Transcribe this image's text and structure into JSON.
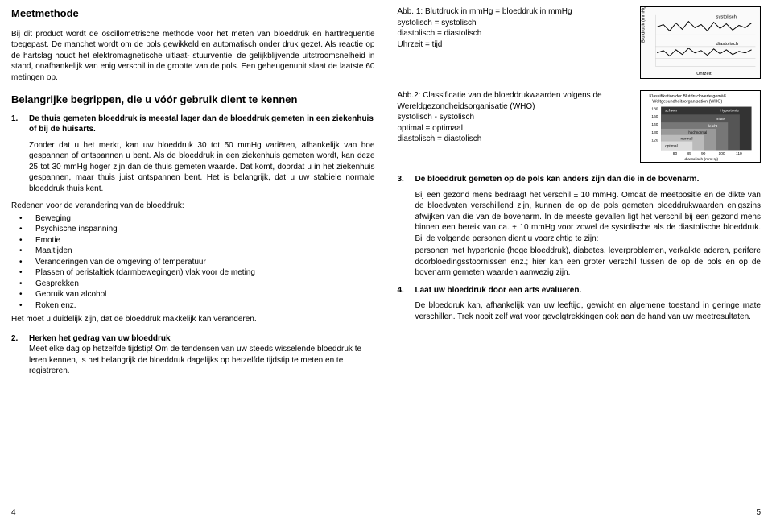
{
  "left": {
    "h1": "Meetmethode",
    "p1": "Bij dit product wordt de oscillometrische methode voor het meten van bloeddruk en hartfrequentie toegepast. De manchet wordt om de pols gewikkeld en automatisch onder druk gezet. Als reactie op de hartslag houdt het elektromagnetische uitlaat- stuurventiel de gelijkblijvende uitstroomsnelheid in stand, onafhankelijk van enig verschil in de grootte van de pols. Een geheugenunit slaat de laatste 60 metingen op.",
    "h2": "Belangrijke begrippen, die u vóór gebruik dient te kennen",
    "item1_num": "1.",
    "item1_title": "De thuis gemeten bloeddruk is meestal lager dan de bloeddruk gemeten in een ziekenhuis of bij de huisarts.",
    "item1_p1": "Zonder dat u het merkt, kan uw bloeddruk 30 tot 50 mmHg variëren, afhankelijk van hoe gespannen of ontspannen u bent. Als de bloeddruk in een ziekenhuis gemeten wordt, kan deze 25 tot 30 mmHg hoger zijn dan de thuis gemeten waarde. Dat komt, doordat u in het ziekenhuis gespannen, maar thuis juist ontspannen bent. Het is belangrijk, dat u uw stabiele normale bloeddruk thuis kent.",
    "reasons_intro": "Redenen voor de verandering van de bloeddruk:",
    "reasons": [
      "Beweging",
      "Psychische inspanning",
      "Emotie",
      "Maaltijden",
      "Veranderingen van de omgeving of temperatuur",
      "Plassen of peristaltiek (darmbewegingen) vlak voor de meting",
      "Gesprekken",
      "Gebruik van alcohol",
      "Roken enz."
    ],
    "reasons_outro": "Het moet u duidelijk zijn, dat de bloeddruk makkelijk kan veranderen.",
    "item2_num": "2.",
    "item2_title": "Herken het gedrag van uw bloeddruk",
    "item2_p": "Meet elke dag op hetzelfde tijdstip! Om de tendensen van uw steeds wisselende bloeddruk te leren kennen, is het belangrijk de bloeddruk dagelijks op hetzelfde tijdstip te meten en te registreren.",
    "pagenum": "4"
  },
  "right": {
    "fig1_label": "Abb. 1:",
    "fig1_text": "Blutdruck in mmHg = bloeddruk in mmHg\nsystolisch = systolisch\ndiastolisch = diastolisch\nUhrzeit = tijd",
    "fig1_top": "systolisch",
    "fig1_bot": "diastolisch",
    "fig1_x": "Uhrzeit",
    "fig2_label": "Abb.2:",
    "fig2_text": "Classificatie van de bloeddrukwaarden volgens de Wereldgezondheidsorganisatie (WHO)\nsystolisch - systolisch\noptimal = optimaal\ndiastolisch = diastolisch",
    "fig2_title1": "Klassifikation der Blutdruckwerte gemäß",
    "fig2_title2": "Weltgesundheitsorganisation (WHO)",
    "fig2_xlabel": "diastolisch (mmHg)",
    "fig2_ylabels": [
      "180",
      "160",
      "140",
      "130",
      "120"
    ],
    "fig2_xlabels": [
      "80",
      "85",
      "90",
      "100",
      "110"
    ],
    "fig2_bands": [
      "schwer",
      "Hypertonie",
      "mittel",
      "leicht",
      "hochnormal",
      "normal",
      "optimal"
    ],
    "item3_num": "3.",
    "item3_title": "De bloeddruk gemeten op de pols kan anders zijn dan die in de bovenarm.",
    "item3_p1": "Bij een gezond mens bedraagt het verschil ± 10 mmHg. Omdat de meetpositie en de dikte van de bloedvaten verschillend zijn, kunnen de op de pols gemeten bloeddrukwaarden enigszins afwijken van die van de bovenarm. In de meeste gevallen ligt het verschil bij een gezond mens binnen een bereik van ca. + 10 mmHg voor zowel de systolische als de diastolische bloeddruk. Bij de volgende personen dient u voorzichtig te zijn:",
    "item3_p2": "personen met hypertonie (hoge bloeddruk), diabetes, leverproblemen, verkalkte aderen, perifere doorbloedingsstoornissen enz.; hier kan een groter verschil tussen de op de pols en op de bovenarm gemeten waarden aanwezig zijn.",
    "item4_num": "4.",
    "item4_title": "Laat uw bloeddruk door een arts evalueren.",
    "p_final": "De bloeddruk kan, afhankelijk van uw leeftijd, gewicht en algemene toestand in geringe mate verschillen. Trek nooit zelf wat voor gevolgtrekkingen ook aan de hand van uw meetresultaten.",
    "pagenum": "5"
  }
}
